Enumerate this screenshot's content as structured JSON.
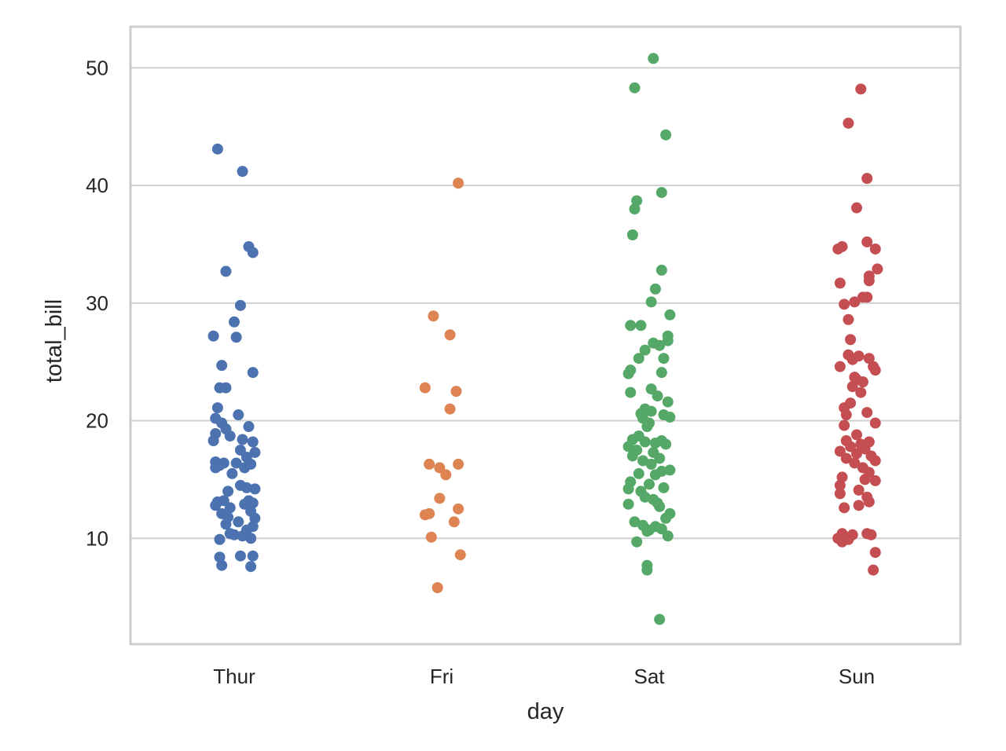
{
  "chart_data": {
    "type": "scatter",
    "subtype": "stripplot",
    "title": "",
    "xlabel": "day",
    "ylabel": "total_bill",
    "categories": [
      "Thur",
      "Fri",
      "Sat",
      "Sun"
    ],
    "colors": [
      "#4c72b0",
      "#dd8452",
      "#55a868",
      "#c44e52"
    ],
    "ylim": [
      1,
      53.5
    ],
    "yticks": [
      10,
      20,
      30,
      40,
      50
    ],
    "grid": true,
    "legend": "none",
    "series": [
      {
        "name": "Thur",
        "points": [
          [
            -0.08,
            43.1
          ],
          [
            0.04,
            41.2
          ],
          [
            0.07,
            34.8
          ],
          [
            0.09,
            34.3
          ],
          [
            -0.04,
            32.7
          ],
          [
            0.03,
            29.8
          ],
          [
            0.0,
            28.4
          ],
          [
            -0.1,
            27.2
          ],
          [
            0.01,
            27.1
          ],
          [
            -0.06,
            24.7
          ],
          [
            0.09,
            24.1
          ],
          [
            -0.07,
            22.8
          ],
          [
            -0.04,
            22.8
          ],
          [
            -0.08,
            21.1
          ],
          [
            0.02,
            20.5
          ],
          [
            -0.09,
            20.2
          ],
          [
            -0.06,
            19.8
          ],
          [
            -0.04,
            19.3
          ],
          [
            0.07,
            19.5
          ],
          [
            -0.09,
            18.9
          ],
          [
            -0.02,
            18.7
          ],
          [
            0.04,
            18.4
          ],
          [
            0.09,
            18.2
          ],
          [
            -0.1,
            18.3
          ],
          [
            0.03,
            17.5
          ],
          [
            0.1,
            17.3
          ],
          [
            0.06,
            16.9
          ],
          [
            -0.09,
            16.5
          ],
          [
            -0.05,
            16.4
          ],
          [
            0.01,
            16.4
          ],
          [
            -0.07,
            16.2
          ],
          [
            0.08,
            16.3
          ],
          [
            -0.09,
            16.0
          ],
          [
            0.05,
            16.0
          ],
          [
            -0.01,
            15.5
          ],
          [
            0.03,
            14.5
          ],
          [
            0.06,
            14.3
          ],
          [
            0.1,
            14.2
          ],
          [
            -0.03,
            14.0
          ],
          [
            -0.08,
            13.1
          ],
          [
            -0.05,
            13.2
          ],
          [
            0.07,
            13.2
          ],
          [
            0.09,
            13.0
          ],
          [
            -0.09,
            12.8
          ],
          [
            -0.02,
            12.6
          ],
          [
            0.05,
            12.9
          ],
          [
            0.08,
            12.3
          ],
          [
            -0.06,
            12.1
          ],
          [
            -0.03,
            11.8
          ],
          [
            0.1,
            11.7
          ],
          [
            0.02,
            11.4
          ],
          [
            -0.04,
            11.2
          ],
          [
            0.09,
            11.0
          ],
          [
            0.06,
            10.7
          ],
          [
            -0.02,
            10.4
          ],
          [
            0.0,
            10.3
          ],
          [
            0.04,
            10.2
          ],
          [
            -0.07,
            9.9
          ],
          [
            0.08,
            10.0
          ],
          [
            -0.07,
            8.4
          ],
          [
            0.03,
            8.5
          ],
          [
            0.09,
            8.5
          ],
          [
            -0.06,
            7.7
          ],
          [
            0.08,
            7.6
          ]
        ]
      },
      {
        "name": "Fri",
        "points": [
          [
            0.08,
            40.2
          ],
          [
            -0.04,
            28.9
          ],
          [
            0.04,
            27.3
          ],
          [
            -0.08,
            22.8
          ],
          [
            0.07,
            22.5
          ],
          [
            0.04,
            21.0
          ],
          [
            -0.06,
            16.3
          ],
          [
            -0.01,
            16.0
          ],
          [
            0.08,
            16.3
          ],
          [
            0.02,
            15.4
          ],
          [
            -0.01,
            13.4
          ],
          [
            0.08,
            12.5
          ],
          [
            -0.06,
            12.1
          ],
          [
            -0.08,
            12.0
          ],
          [
            0.06,
            11.4
          ],
          [
            -0.05,
            10.1
          ],
          [
            0.09,
            8.6
          ],
          [
            -0.02,
            5.8
          ]
        ]
      },
      {
        "name": "Sat",
        "points": [
          [
            0.02,
            50.8
          ],
          [
            -0.07,
            48.3
          ],
          [
            0.08,
            44.3
          ],
          [
            0.06,
            39.4
          ],
          [
            -0.06,
            38.7
          ],
          [
            -0.07,
            38.0
          ],
          [
            -0.08,
            35.8
          ],
          [
            0.06,
            32.8
          ],
          [
            0.03,
            31.2
          ],
          [
            0.01,
            30.1
          ],
          [
            0.1,
            29.0
          ],
          [
            -0.09,
            28.1
          ],
          [
            -0.04,
            28.1
          ],
          [
            0.09,
            27.2
          ],
          [
            0.09,
            26.8
          ],
          [
            0.02,
            26.6
          ],
          [
            0.05,
            26.4
          ],
          [
            -0.02,
            26.0
          ],
          [
            -0.05,
            25.3
          ],
          [
            0.07,
            25.3
          ],
          [
            -0.09,
            24.3
          ],
          [
            -0.1,
            24.0
          ],
          [
            0.06,
            24.1
          ],
          [
            0.01,
            22.7
          ],
          [
            -0.09,
            22.4
          ],
          [
            0.04,
            22.1
          ],
          [
            0.09,
            21.6
          ],
          [
            -0.02,
            21.0
          ],
          [
            0.01,
            20.8
          ],
          [
            -0.04,
            20.6
          ],
          [
            0.07,
            20.5
          ],
          [
            0.1,
            20.3
          ],
          [
            -0.03,
            20.2
          ],
          [
            0.0,
            19.8
          ],
          [
            -0.01,
            19.5
          ],
          [
            -0.05,
            18.7
          ],
          [
            -0.08,
            18.4
          ],
          [
            0.06,
            18.3
          ],
          [
            -0.02,
            18.2
          ],
          [
            0.03,
            18.1
          ],
          [
            0.08,
            18.0
          ],
          [
            -0.1,
            17.8
          ],
          [
            -0.06,
            17.5
          ],
          [
            0.02,
            17.3
          ],
          [
            -0.08,
            17.0
          ],
          [
            0.05,
            16.8
          ],
          [
            -0.03,
            16.6
          ],
          [
            0.01,
            16.3
          ],
          [
            0.1,
            15.8
          ],
          [
            0.06,
            15.7
          ],
          [
            -0.05,
            15.5
          ],
          [
            0.03,
            15.4
          ],
          [
            -0.09,
            14.8
          ],
          [
            0.0,
            14.6
          ],
          [
            -0.1,
            14.2
          ],
          [
            0.07,
            14.3
          ],
          [
            -0.04,
            14.0
          ],
          [
            -0.02,
            13.5
          ],
          [
            0.02,
            13.3
          ],
          [
            0.04,
            13.0
          ],
          [
            -0.1,
            12.9
          ],
          [
            0.05,
            12.7
          ],
          [
            0.1,
            12.1
          ],
          [
            0.08,
            11.7
          ],
          [
            -0.07,
            11.4
          ],
          [
            -0.03,
            11.1
          ],
          [
            0.03,
            11.0
          ],
          [
            0.06,
            10.8
          ],
          [
            0.0,
            10.7
          ],
          [
            -0.01,
            10.6
          ],
          [
            0.09,
            10.2
          ],
          [
            -0.06,
            9.7
          ],
          [
            -0.01,
            7.7
          ],
          [
            -0.01,
            7.3
          ],
          [
            0.05,
            3.1
          ]
        ]
      },
      {
        "name": "Sun",
        "points": [
          [
            0.02,
            48.2
          ],
          [
            -0.04,
            45.3
          ],
          [
            0.05,
            40.6
          ],
          [
            0.0,
            38.1
          ],
          [
            0.05,
            35.2
          ],
          [
            -0.09,
            34.6
          ],
          [
            -0.07,
            34.8
          ],
          [
            0.09,
            34.6
          ],
          [
            0.1,
            32.9
          ],
          [
            0.06,
            32.3
          ],
          [
            0.06,
            31.9
          ],
          [
            -0.08,
            31.7
          ],
          [
            0.03,
            30.5
          ],
          [
            0.05,
            30.5
          ],
          [
            -0.01,
            30.1
          ],
          [
            -0.06,
            29.9
          ],
          [
            -0.04,
            28.6
          ],
          [
            -0.03,
            26.9
          ],
          [
            -0.04,
            25.6
          ],
          [
            0.01,
            25.5
          ],
          [
            -0.02,
            25.2
          ],
          [
            0.06,
            25.3
          ],
          [
            0.08,
            24.6
          ],
          [
            -0.08,
            24.6
          ],
          [
            0.09,
            24.3
          ],
          [
            -0.01,
            23.7
          ],
          [
            0.0,
            23.5
          ],
          [
            0.03,
            23.3
          ],
          [
            -0.02,
            22.9
          ],
          [
            0.02,
            22.4
          ],
          [
            -0.03,
            21.5
          ],
          [
            -0.06,
            21.1
          ],
          [
            0.05,
            20.7
          ],
          [
            -0.05,
            20.5
          ],
          [
            0.09,
            19.8
          ],
          [
            -0.06,
            19.6
          ],
          [
            0.0,
            18.8
          ],
          [
            -0.05,
            18.3
          ],
          [
            0.06,
            18.2
          ],
          [
            0.02,
            18.0
          ],
          [
            -0.03,
            17.8
          ],
          [
            0.04,
            17.6
          ],
          [
            -0.08,
            17.4
          ],
          [
            0.0,
            17.2
          ],
          [
            0.07,
            17.0
          ],
          [
            -0.05,
            16.8
          ],
          [
            0.09,
            16.6
          ],
          [
            -0.01,
            16.4
          ],
          [
            0.03,
            16.0
          ],
          [
            0.06,
            15.6
          ],
          [
            -0.07,
            15.2
          ],
          [
            0.04,
            15.0
          ],
          [
            0.09,
            14.9
          ],
          [
            -0.08,
            14.5
          ],
          [
            0.01,
            14.1
          ],
          [
            -0.08,
            13.8
          ],
          [
            0.05,
            13.5
          ],
          [
            0.06,
            13.1
          ],
          [
            0.01,
            12.8
          ],
          [
            -0.06,
            12.6
          ],
          [
            -0.07,
            10.4
          ],
          [
            0.05,
            10.4
          ],
          [
            -0.02,
            10.3
          ],
          [
            0.07,
            10.3
          ],
          [
            -0.05,
            10.1
          ],
          [
            -0.09,
            10.0
          ],
          [
            -0.04,
            9.9
          ],
          [
            -0.07,
            9.7
          ],
          [
            0.09,
            8.8
          ],
          [
            0.08,
            7.3
          ]
        ]
      }
    ]
  }
}
